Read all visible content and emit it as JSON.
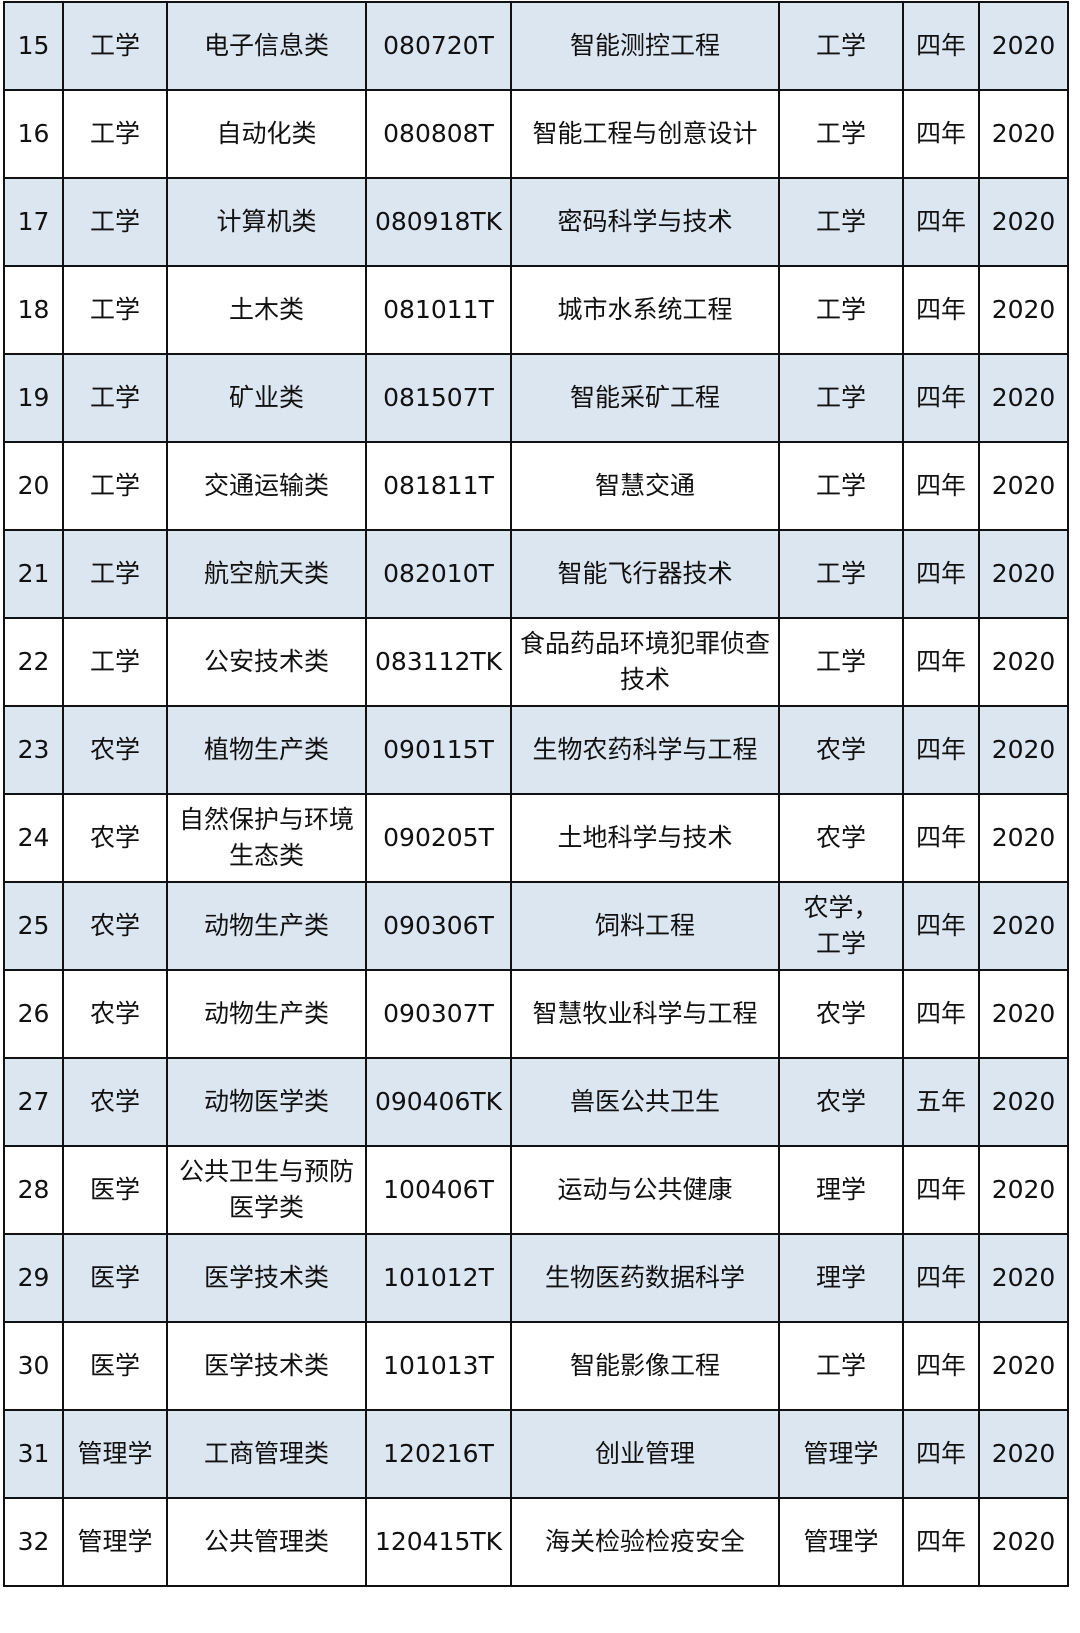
{
  "table": {
    "rows": [
      [
        "15",
        "工学",
        "电子信息类",
        "080720T",
        "智能测控工程",
        "工学",
        "四年",
        "2020"
      ],
      [
        "16",
        "工学",
        "自动化类",
        "080808T",
        "智能工程与创意设计",
        "工学",
        "四年",
        "2020"
      ],
      [
        "17",
        "工学",
        "计算机类",
        "080918TK",
        "密码科学与技术",
        "工学",
        "四年",
        "2020"
      ],
      [
        "18",
        "工学",
        "土木类",
        "081011T",
        "城市水系统工程",
        "工学",
        "四年",
        "2020"
      ],
      [
        "19",
        "工学",
        "矿业类",
        "081507T",
        "智能采矿工程",
        "工学",
        "四年",
        "2020"
      ],
      [
        "20",
        "工学",
        "交通运输类",
        "081811T",
        "智慧交通",
        "工学",
        "四年",
        "2020"
      ],
      [
        "21",
        "工学",
        "航空航天类",
        "082010T",
        "智能飞行器技术",
        "工学",
        "四年",
        "2020"
      ],
      [
        "22",
        "工学",
        "公安技术类",
        "083112TK",
        "食品药品环境犯罪侦查技术",
        "工学",
        "四年",
        "2020"
      ],
      [
        "23",
        "农学",
        "植物生产类",
        "090115T",
        "生物农药科学与工程",
        "农学",
        "四年",
        "2020"
      ],
      [
        "24",
        "农学",
        "自然保护与环境生态类",
        "090205T",
        "土地科学与技术",
        "农学",
        "四年",
        "2020"
      ],
      [
        "25",
        "农学",
        "动物生产类",
        "090306T",
        "饲料工程",
        "农学，工学",
        "四年",
        "2020"
      ],
      [
        "26",
        "农学",
        "动物生产类",
        "090307T",
        "智慧牧业科学与工程",
        "农学",
        "四年",
        "2020"
      ],
      [
        "27",
        "农学",
        "动物医学类",
        "090406TK",
        "兽医公共卫生",
        "农学",
        "五年",
        "2020"
      ],
      [
        "28",
        "医学",
        "公共卫生与预防医学类",
        "100406T",
        "运动与公共健康",
        "理学",
        "四年",
        "2020"
      ],
      [
        "29",
        "医学",
        "医学技术类",
        "101012T",
        "生物医药数据科学",
        "理学",
        "四年",
        "2020"
      ],
      [
        "30",
        "医学",
        "医学技术类",
        "101013T",
        "智能影像工程",
        "工学",
        "四年",
        "2020"
      ],
      [
        "31",
        "管理学",
        "工商管理类",
        "120216T",
        "创业管理",
        "管理学",
        "四年",
        "2020"
      ],
      [
        "32",
        "管理学",
        "公共管理类",
        "120415TK",
        "海关检验检疫安全",
        "管理学",
        "四年",
        "2020"
      ]
    ]
  }
}
